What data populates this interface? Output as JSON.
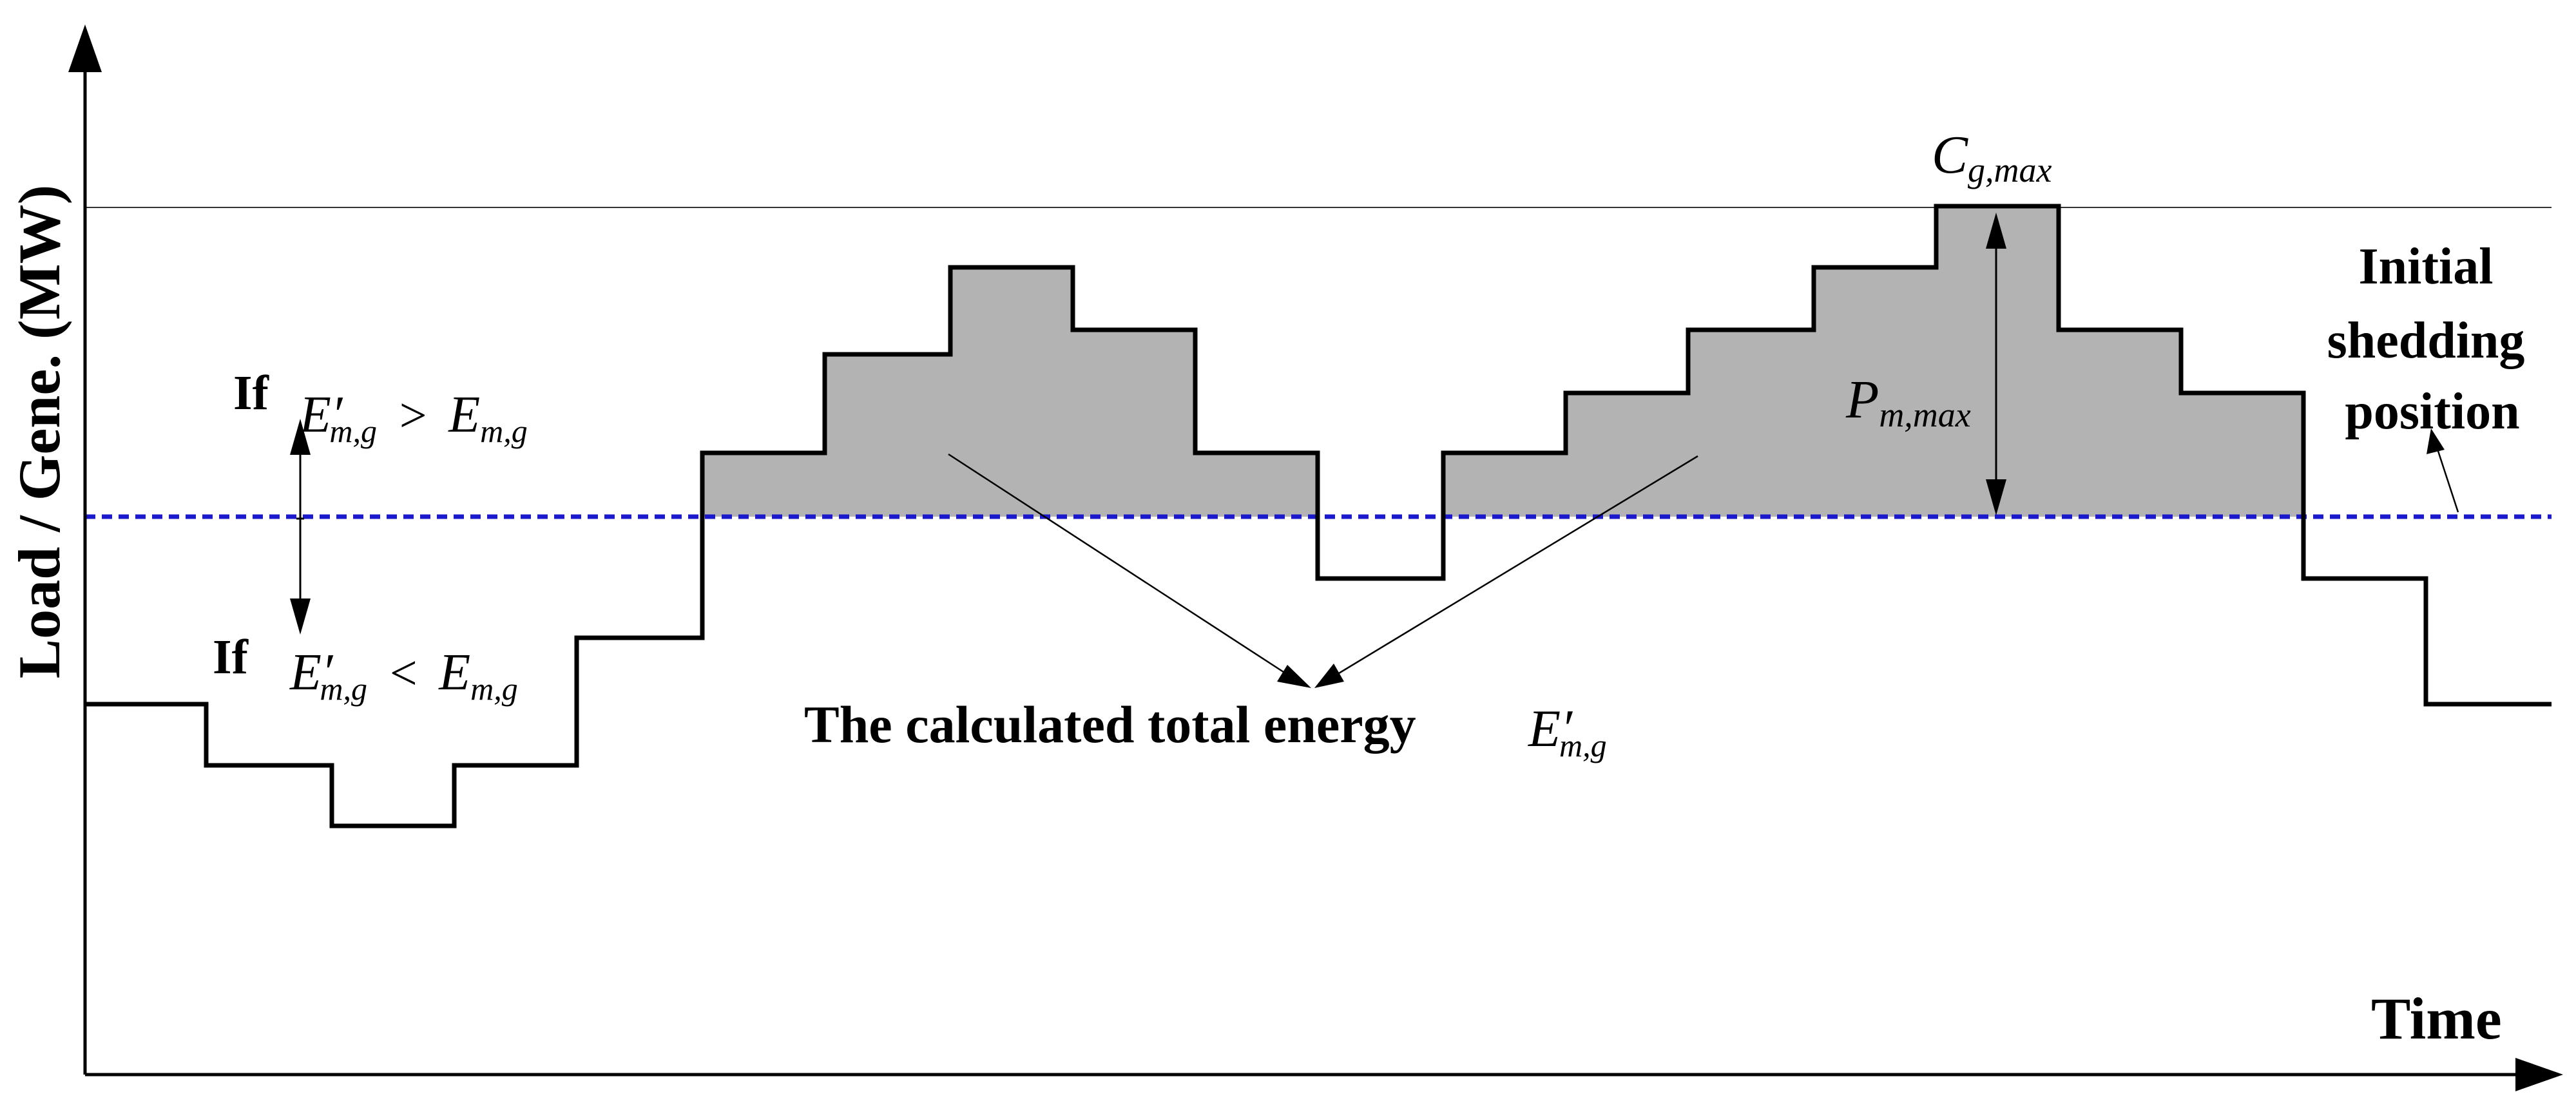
{
  "diagram": {
    "y_axis_label": "Load / Gene. (MW)",
    "x_axis_label": "Time",
    "capacity_label": {
      "symbol": "C",
      "subscript": "g,max"
    },
    "peak_label": {
      "symbol": "P",
      "subscript": "m,max"
    },
    "initial_position_label": [
      "Initial",
      "shedding",
      "position"
    ],
    "condition_upper": {
      "prefix": "If",
      "lhs": "E",
      "lhs_prime": "′",
      "lhs_sub": "m,g",
      "operator": ">",
      "rhs": "E",
      "rhs_sub": "m,g"
    },
    "condition_lower": {
      "prefix": "If",
      "lhs": "E",
      "lhs_prime": "′",
      "lhs_sub": "m,g",
      "operator": "<",
      "rhs": "E",
      "rhs_sub": "m,g"
    },
    "energy_caption": {
      "text": "The calculated total energy",
      "symbol": "E",
      "prime": "′",
      "subscript": "m,g"
    },
    "colors": {
      "line": "#000000",
      "shaded_area": "#b3b3b3",
      "shedding_line": "#1a1acc",
      "capacity_line": "#333333"
    }
  }
}
